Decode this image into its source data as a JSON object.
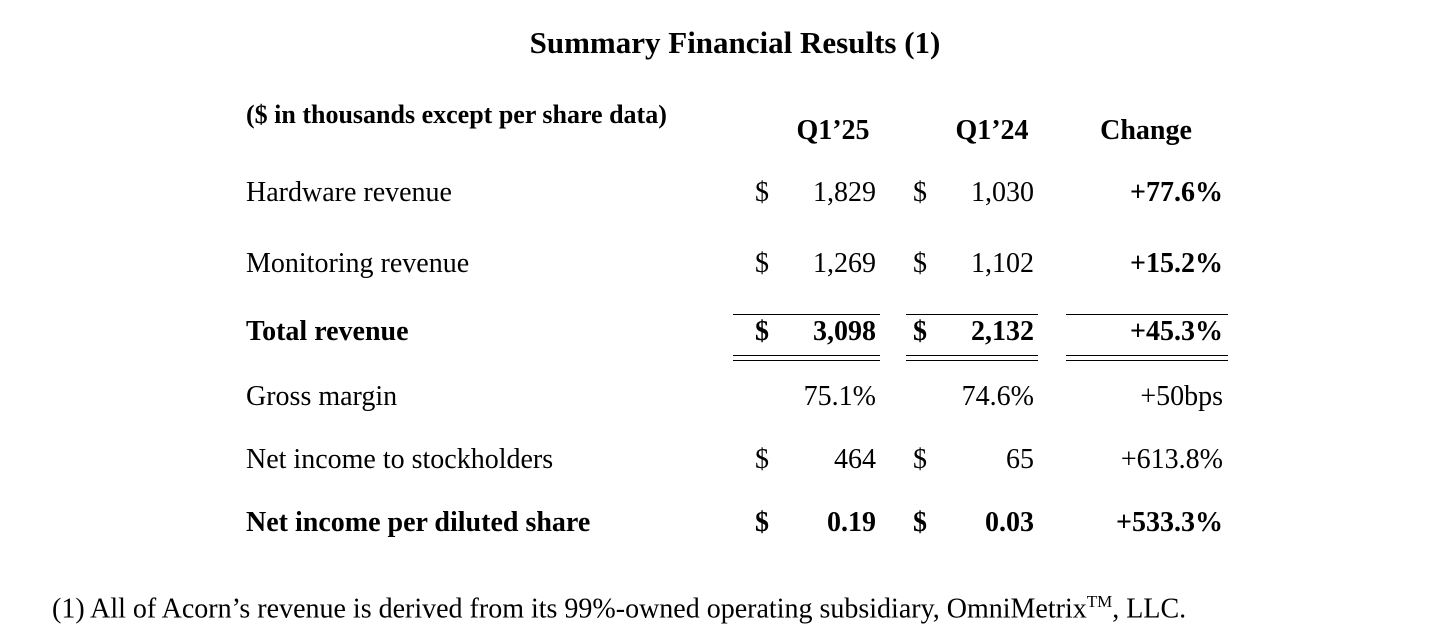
{
  "title": "Summary Financial Results (1)",
  "table": {
    "header": [
      "($ in thousands except per share data)",
      "Q1’25",
      "Q1’24",
      "Change"
    ],
    "rows": [
      {
        "label": "Hardware revenue",
        "bold": false,
        "cells": [
          {
            "currency": "$",
            "value": "1,829"
          },
          {
            "currency": "$",
            "value": "1,030"
          },
          {
            "value": "+77.6%",
            "bold": true
          }
        ]
      },
      {
        "label": "Monitoring revenue",
        "bold": false,
        "cells": [
          {
            "currency": "$",
            "value": "1,269"
          },
          {
            "currency": "$",
            "value": "1,102"
          },
          {
            "value": "+15.2%",
            "bold": true
          }
        ]
      },
      {
        "label": "Total revenue",
        "bold": true,
        "total": true,
        "cells": [
          {
            "currency": "$",
            "value": "3,098"
          },
          {
            "currency": "$",
            "value": "2,132"
          },
          {
            "value": "+45.3%",
            "bold": true
          }
        ]
      },
      {
        "label": "Gross margin",
        "bold": false,
        "cells": [
          {
            "value": "75.1%"
          },
          {
            "value": "74.6%"
          },
          {
            "value": "+50bps"
          }
        ]
      },
      {
        "label": "Net income to stockholders",
        "bold": false,
        "cells": [
          {
            "currency": "$",
            "value": "464"
          },
          {
            "currency": "$",
            "value": "65"
          },
          {
            "value": "+613.8%"
          }
        ]
      },
      {
        "label": "Net income per diluted share",
        "bold": true,
        "cells": [
          {
            "currency": "$",
            "value": "0.19"
          },
          {
            "currency": "$",
            "value": "0.03"
          },
          {
            "value": "+533.3%",
            "bold": true
          }
        ]
      }
    ]
  },
  "footnote": {
    "text": "(1) All of Acorn’s revenue is derived from its 99%-owned operating subsidiary, OmniMetrix",
    "mark": "TM",
    "tail": ", LLC."
  }
}
